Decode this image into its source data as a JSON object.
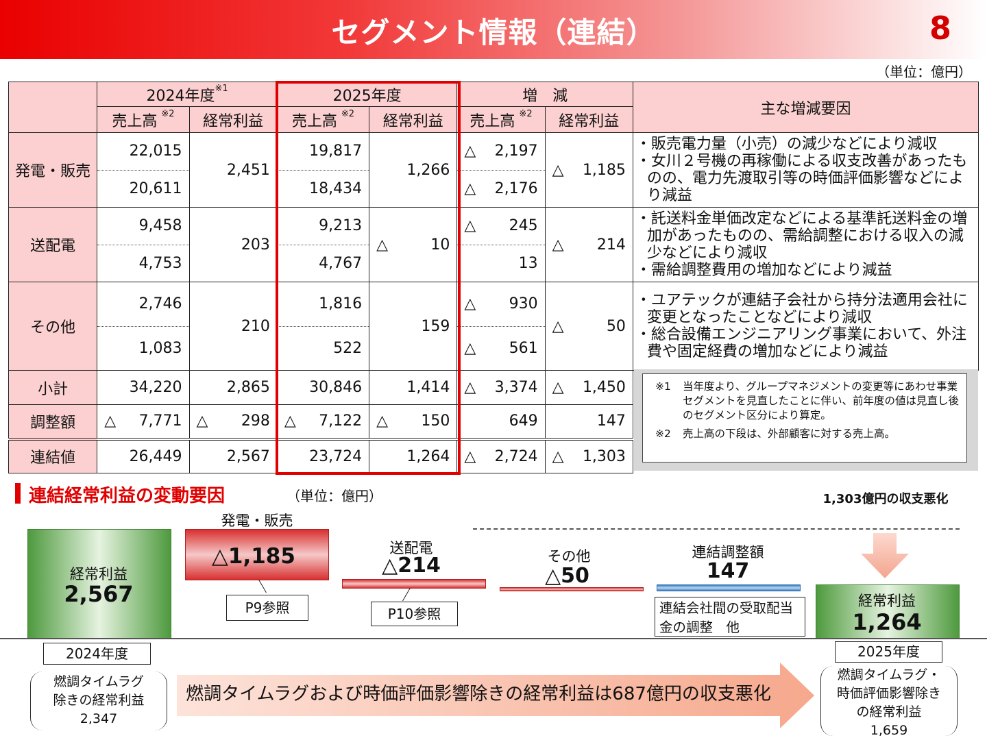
{
  "header": {
    "title": "セグメント情報（連結）",
    "page": "8",
    "unit": "（単位：億円）"
  },
  "table": {
    "groups": {
      "y2024": "2024年度",
      "y2024_note": "※1",
      "y2025": "2025年度",
      "diff": "増　減",
      "reasons": "主な増減要因"
    },
    "cols": {
      "sales": "売上高",
      "sales_note": "※2",
      "profit": "経常利益"
    },
    "rows": [
      {
        "label": "発電・販売",
        "s24a": "22,015",
        "s24b": "20,611",
        "p24": "2,451",
        "s25a": "19,817",
        "s25b": "18,434",
        "p25": "1,266",
        "dsa_tri": "△",
        "dsa": "2,197",
        "dsb_tri": "△",
        "dsb": "2,176",
        "dp_tri": "△",
        "dp": "1,185",
        "reasons": [
          "・販売電力量（小売）の減少などにより減収",
          "・女川２号機の再稼働による収支改善があったものの、電力先渡取引等の時価評価影響などにより減益"
        ]
      },
      {
        "label": "送配電",
        "s24a": "9,458",
        "s24b": "4,753",
        "p24": "203",
        "s25a": "9,213",
        "s25b": "4,767",
        "p25_tri": "△",
        "p25": "10",
        "dsa_tri": "△",
        "dsa": "245",
        "dsb_tri": "",
        "dsb": "13",
        "dp_tri": "△",
        "dp": "214",
        "reasons": [
          "・託送料金単価改定などによる基準託送料金の増加があったものの、需給調整における収入の減少などにより減収",
          "・需給調整費用の増加などにより減益"
        ]
      },
      {
        "label": "その他",
        "s24a": "2,746",
        "s24b": "1,083",
        "p24": "210",
        "s25a": "1,816",
        "s25b": "522",
        "p25": "159",
        "dsa_tri": "△",
        "dsa": "930",
        "dsb_tri": "△",
        "dsb": "561",
        "dp_tri": "△",
        "dp": "50",
        "reasons": [
          "・ユアテックが連結子会社から持分法適用会社に変更となったことなどにより減収",
          "・総合設備エンジニアリング事業において、外注費や固定経費の増加などにより減益"
        ]
      }
    ],
    "subtotal": {
      "label": "小計",
      "s24": "34,220",
      "p24": "2,865",
      "s25": "30,846",
      "p25": "1,414",
      "ds_tri": "△",
      "ds": "3,374",
      "dp_tri": "△",
      "dp": "1,450"
    },
    "adjust": {
      "label": "調整額",
      "s24_tri": "△",
      "s24": "7,771",
      "p24_tri": "△",
      "p24": "298",
      "s25_tri": "△",
      "s25": "7,122",
      "p25_tri": "△",
      "p25": "150",
      "ds": "649",
      "dp": "147"
    },
    "consolidated": {
      "label": "連結値",
      "s24": "26,449",
      "p24": "2,567",
      "s25": "23,724",
      "p25": "1,264",
      "ds_tri": "△",
      "ds": "2,724",
      "dp_tri": "△",
      "dp": "1,303"
    },
    "notes": [
      {
        "mark": "※1",
        "text": "当年度より、グループマネジメントの変更等にあわせ事業セグメントを見直したことに伴い、前年度の値は見直し後のセグメント区分により算定。"
      },
      {
        "mark": "※2",
        "text": "売上高の下段は、外部顧客に対する売上高。"
      }
    ]
  },
  "waterfall": {
    "title": "連結経常利益の変動要因",
    "unit": "（単位：億円）",
    "start": {
      "label": "経常利益",
      "value": "2,567",
      "year": "2024年度"
    },
    "gen": {
      "label": "発電・販売",
      "value": "△1,185",
      "ref": "P9参照"
    },
    "grid": {
      "label": "送配電",
      "value": "△214",
      "ref": "P10参照"
    },
    "other": {
      "label": "その他",
      "value": "△50"
    },
    "adj": {
      "label": "連結調整額",
      "value": "147",
      "note": "連結会社間の受取配当金の調整　他"
    },
    "end": {
      "label": "経常利益",
      "value": "1,264",
      "year": "2025年度"
    },
    "worsen": "1,303億円の収支悪化",
    "excl_start": {
      "label": "燃調タイムラグ除きの経常利益",
      "value": "2,347"
    },
    "excl_end": {
      "label": "燃調タイムラグ・時価評価影響除きの経常利益",
      "value": "1,659"
    },
    "summary": "燃調タイムラグおよび時価評価影響除きの経常利益は687億円の収支悪化"
  }
}
